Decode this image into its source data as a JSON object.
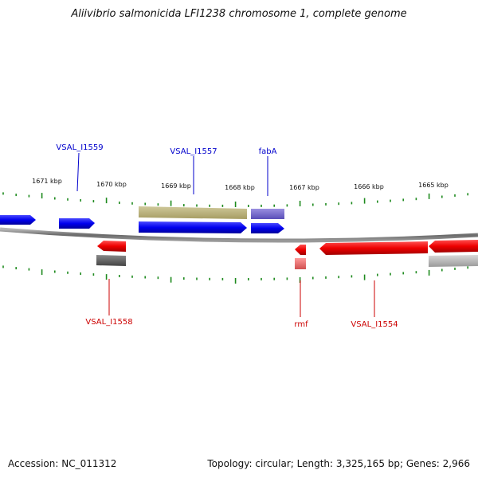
{
  "title": "Aliivibrio salmonicida LFI1238 chromosome 1, complete genome",
  "footer": {
    "accession": "Accession: NC_011312",
    "stats": "Topology: circular; Length: 3,325,165 bp; Genes: 2,966"
  },
  "colors": {
    "forward_gene": "#0000ee",
    "reverse_gene": "#ee0000",
    "forward_label": "#0000cc",
    "reverse_label": "#cc0000",
    "tick": "#1e8a1e",
    "backbone": "#777777"
  },
  "ruler": {
    "upper_labels": [
      "1671 kbp",
      "1670 kbp",
      "1669 kbp",
      "1668 kbp",
      "1667 kbp",
      "1666 kbp",
      "1665 kbp"
    ]
  },
  "gene_labels": {
    "forward": [
      "VSAL_I1559",
      "VSAL_I1557",
      "fabA"
    ],
    "reverse": [
      "VSAL_I1558",
      "rmf",
      "VSAL_I1554"
    ]
  }
}
